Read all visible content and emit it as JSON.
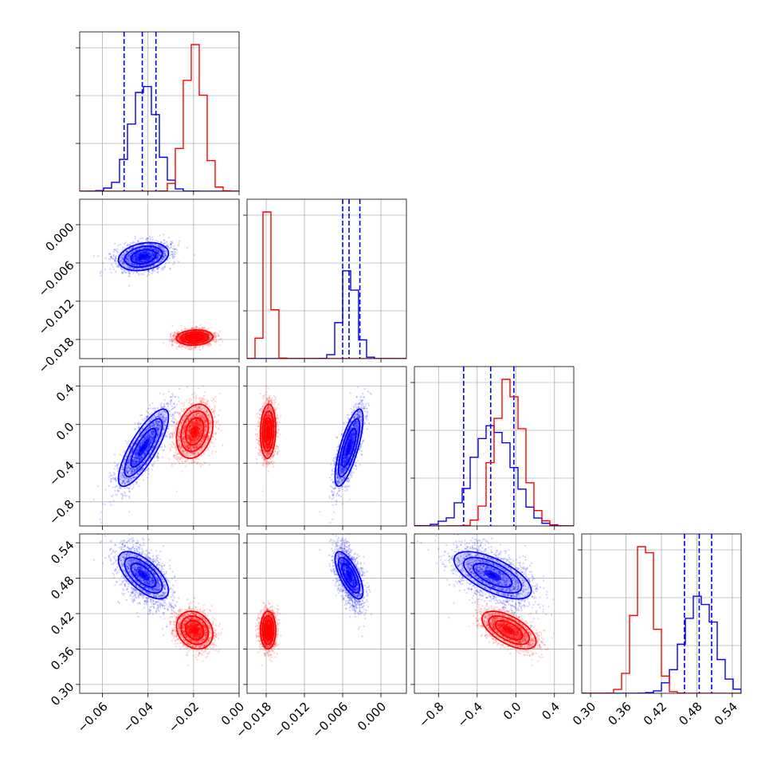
{
  "chart_data": {
    "type": "corner",
    "parameters": [
      {
        "name": "param_1",
        "range": [
          -0.07,
          0.0
        ],
        "ticks": [
          -0.06,
          -0.04,
          -0.02,
          0.0
        ],
        "tick_labels": [
          "−0.06",
          "−0.04",
          "−0.02",
          "0.00"
        ]
      },
      {
        "name": "param_2",
        "range": [
          -0.021,
          0.004
        ],
        "ticks": [
          -0.018,
          -0.012,
          -0.006,
          0.0
        ],
        "tick_labels": [
          "−0.018",
          "−0.012",
          "−0.006",
          "0.000"
        ]
      },
      {
        "name": "param_3",
        "range": [
          -1.05,
          0.6
        ],
        "ticks": [
          -0.8,
          -0.4,
          0.0,
          0.4
        ],
        "tick_labels": [
          "−0.8",
          "−0.4",
          "0.0",
          "0.4"
        ]
      },
      {
        "name": "param_4",
        "range": [
          0.285,
          0.555
        ],
        "ticks": [
          0.3,
          0.36,
          0.42,
          0.48,
          0.54
        ],
        "tick_labels": [
          "0.30",
          "0.36",
          "0.42",
          "0.48",
          "0.54"
        ]
      }
    ],
    "series": [
      {
        "name": "blue",
        "color": "#0000ff",
        "means": [
          -0.042,
          -0.005,
          -0.24,
          0.485
        ],
        "sds": [
          0.0055,
          0.0011,
          0.2,
          0.02
        ],
        "corr": {
          "1-2": 0.25,
          "1-3": 0.8,
          "2-3": 0.75,
          "1-4": -0.65,
          "2-4": -0.7,
          "3-4": -0.65
        },
        "quantiles": [
          [
            -0.0505,
            -0.0425,
            -0.0365
          ],
          [
            -0.006,
            -0.005,
            -0.0033
          ],
          [
            -0.54,
            -0.26,
            -0.02
          ],
          [
            0.459,
            0.484,
            0.505
          ]
        ]
      },
      {
        "name": "red",
        "color": "#ff0000",
        "means": [
          -0.0195,
          -0.0177,
          -0.07,
          0.392
        ],
        "sds": [
          0.004,
          0.0006,
          0.14,
          0.016
        ],
        "corr": {
          "1-2": 0.1,
          "1-3": 0.25,
          "2-3": 0.1,
          "1-4": -0.2,
          "2-4": 0.0,
          "3-4": -0.6
        },
        "quantiles": []
      }
    ],
    "contour_levels_sigma": [
      0.5,
      1.0,
      1.5,
      2.0
    ],
    "histogram_bins": 20,
    "quantile_lines": "blue only, dashed"
  }
}
